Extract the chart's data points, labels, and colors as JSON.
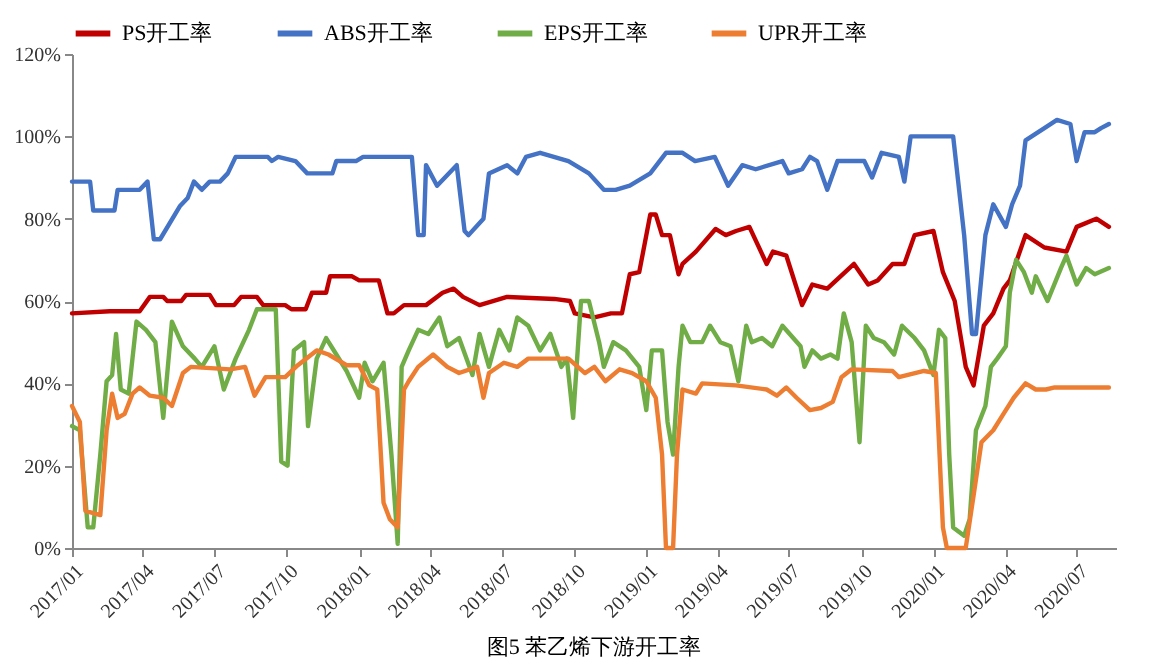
{
  "chart_data": {
    "type": "line",
    "title": "图5 苯乙烯下游开工率",
    "legend": "top",
    "line_style": "solid",
    "xlim": [
      "2017-01-01",
      "2020-08-20"
    ],
    "xticks": [
      {
        "value": "2017-01-01",
        "label": "2017/01"
      },
      {
        "value": "2017-04-01",
        "label": "2017/04"
      },
      {
        "value": "2017-07-01",
        "label": "2017/07"
      },
      {
        "value": "2017-10-01",
        "label": "2017/10"
      },
      {
        "value": "2018-01-01",
        "label": "2018/01"
      },
      {
        "value": "2018-04-01",
        "label": "2018/04"
      },
      {
        "value": "2018-07-01",
        "label": "2018/07"
      },
      {
        "value": "2018-10-01",
        "label": "2018/10"
      },
      {
        "value": "2019-01-01",
        "label": "2019/01"
      },
      {
        "value": "2019-04-01",
        "label": "2019/04"
      },
      {
        "value": "2019-07-01",
        "label": "2019/07"
      },
      {
        "value": "2019-10-01",
        "label": "2019/10"
      },
      {
        "value": "2020-01-01",
        "label": "2020/01"
      },
      {
        "value": "2020-04-01",
        "label": "2020/04"
      },
      {
        "value": "2020-07-01",
        "label": "2020/07"
      }
    ],
    "ylim": [
      0,
      120
    ],
    "yticks": [
      {
        "value": 0,
        "label": "0%"
      },
      {
        "value": 20,
        "label": "20%"
      },
      {
        "value": 40,
        "label": "40%"
      },
      {
        "value": 60,
        "label": "60%"
      },
      {
        "value": 80,
        "label": "80%"
      },
      {
        "value": 100,
        "label": "100%"
      },
      {
        "value": 120,
        "label": "120%"
      }
    ],
    "series": [
      {
        "name": "PS开工率",
        "color": "#c00000",
        "x": [
          "2017-01-01",
          "2017-02-18",
          "2017-03-28",
          "2017-04-10",
          "2017-04-27",
          "2017-05-02",
          "2017-05-20",
          "2017-05-26",
          "2017-06-25",
          "2017-07-03",
          "2017-07-26",
          "2017-08-04",
          "2017-08-24",
          "2017-09-01",
          "2017-09-29",
          "2017-10-07",
          "2017-10-25",
          "2017-11-02",
          "2017-11-20",
          "2017-11-25",
          "2017-12-23",
          "2018-01-01",
          "2018-01-26",
          "2018-02-06",
          "2018-02-14",
          "2018-02-27",
          "2018-03-27",
          "2018-04-17",
          "2018-05-01",
          "2018-05-13",
          "2018-06-03",
          "2018-07-08",
          "2018-09-06",
          "2018-09-26",
          "2018-10-02",
          "2018-10-27",
          "2018-11-17",
          "2018-12-01",
          "2018-12-11",
          "2018-12-23",
          "2019-01-06",
          "2019-01-13",
          "2019-01-21",
          "2019-01-31",
          "2019-02-11",
          "2019-02-16",
          "2019-03-05",
          "2019-03-30",
          "2019-04-12",
          "2019-04-25",
          "2019-05-12",
          "2019-06-03",
          "2019-06-11",
          "2019-06-28",
          "2019-07-18",
          "2019-07-31",
          "2019-08-19",
          "2019-09-22",
          "2019-10-10",
          "2019-10-22",
          "2019-11-10",
          "2019-11-25",
          "2019-12-08",
          "2020-01-01",
          "2020-01-13",
          "2020-01-28",
          "2020-02-11",
          "2020-02-21",
          "2020-03-05",
          "2020-03-17",
          "2020-03-30",
          "2020-04-07",
          "2020-04-27",
          "2020-05-21",
          "2020-06-18",
          "2020-07-01",
          "2020-07-26",
          "2020-08-11"
        ],
        "values": [
          57,
          57.5,
          57.5,
          61,
          61,
          60,
          60,
          61.5,
          61.5,
          59,
          59,
          61,
          61,
          59,
          59,
          58,
          58,
          62,
          62,
          66,
          66,
          65,
          65,
          57,
          57,
          59,
          59,
          62,
          63,
          61,
          59,
          61,
          60.5,
          60,
          57,
          56,
          57,
          57,
          66.5,
          67,
          81,
          81,
          76,
          76,
          66.5,
          69,
          72,
          77.5,
          76,
          77,
          78,
          69,
          72,
          71,
          59,
          64,
          63,
          69,
          64,
          65,
          69,
          69,
          76,
          77,
          67,
          60,
          44,
          39.5,
          54,
          57,
          63,
          65,
          76,
          73,
          72,
          78,
          80,
          78
        ]
      },
      {
        "name": "ABS开工率",
        "color": "#4472c4",
        "x": [
          "2017-01-01",
          "2017-01-24",
          "2017-01-28",
          "2017-02-24",
          "2017-02-28",
          "2017-03-28",
          "2017-04-07",
          "2017-04-15",
          "2017-04-23",
          "2017-05-18",
          "2017-05-28",
          "2017-06-05",
          "2017-06-15",
          "2017-06-25",
          "2017-07-08",
          "2017-07-18",
          "2017-07-28",
          "2017-09-07",
          "2017-09-12",
          "2017-09-20",
          "2017-10-12",
          "2017-10-27",
          "2017-11-28",
          "2017-12-03",
          "2017-12-28",
          "2018-01-06",
          "2018-03-09",
          "2018-03-17",
          "2018-03-24",
          "2018-03-27",
          "2018-04-10",
          "2018-05-05",
          "2018-05-15",
          "2018-05-20",
          "2018-06-08",
          "2018-06-15",
          "2018-07-08",
          "2018-07-21",
          "2018-08-01",
          "2018-08-19",
          "2018-09-24",
          "2018-10-20",
          "2018-11-08",
          "2018-11-23",
          "2018-12-11",
          "2019-01-06",
          "2019-01-26",
          "2019-02-16",
          "2019-03-04",
          "2019-03-29",
          "2019-04-15",
          "2019-05-03",
          "2019-05-20",
          "2019-06-23",
          "2019-07-01",
          "2019-07-18",
          "2019-07-28",
          "2019-08-06",
          "2019-08-19",
          "2019-09-01",
          "2019-10-05",
          "2019-10-15",
          "2019-10-27",
          "2019-11-18",
          "2019-11-25",
          "2019-12-03",
          "2020-01-26",
          "2020-02-09",
          "2020-02-19",
          "2020-02-24",
          "2020-03-07",
          "2020-03-17",
          "2020-04-02",
          "2020-04-10",
          "2020-04-20",
          "2020-04-27",
          "2020-05-21",
          "2020-06-06",
          "2020-06-23",
          "2020-07-01",
          "2020-07-11",
          "2020-07-24",
          "2020-08-01",
          "2020-08-11"
        ],
        "values": [
          89,
          89,
          82,
          82,
          87,
          87,
          89,
          75,
          75,
          83,
          85,
          89,
          87,
          89,
          89,
          91,
          95,
          95,
          94,
          95,
          94,
          91,
          91,
          94,
          94,
          95,
          95,
          76,
          76,
          93,
          88,
          93,
          77,
          76,
          80,
          91,
          93,
          91,
          95,
          96,
          94,
          91,
          87,
          87,
          88,
          91,
          96,
          96,
          94,
          95,
          88,
          93,
          92,
          94,
          91,
          92,
          95,
          94,
          87,
          94,
          94,
          90,
          96,
          95,
          89,
          100,
          100,
          76,
          52,
          52,
          76,
          83.5,
          78,
          83.5,
          88,
          99,
          102,
          104,
          103,
          94,
          101,
          101,
          102,
          103
        ]
      },
      {
        "name": "EPS开工率",
        "color": "#70ad47",
        "x": [
          "2017-01-01",
          "2017-01-11",
          "2017-01-21",
          "2017-01-28",
          "2017-02-06",
          "2017-02-14",
          "2017-02-21",
          "2017-02-26",
          "2017-03-04",
          "2017-03-14",
          "2017-03-24",
          "2017-04-05",
          "2017-04-17",
          "2017-04-27",
          "2017-05-08",
          "2017-05-22",
          "2017-06-06",
          "2017-06-15",
          "2017-07-01",
          "2017-07-13",
          "2017-07-28",
          "2017-08-14",
          "2017-08-24",
          "2017-09-17",
          "2017-09-24",
          "2017-10-02",
          "2017-10-10",
          "2017-10-23",
          "2017-10-28",
          "2017-11-08",
          "2017-11-20",
          "2017-12-03",
          "2017-12-16",
          "2018-01-01",
          "2018-01-08",
          "2018-01-18",
          "2018-02-01",
          "2018-02-11",
          "2018-02-19",
          "2018-02-24",
          "2018-03-05",
          "2018-03-17",
          "2018-03-30",
          "2018-04-13",
          "2018-04-23",
          "2018-05-08",
          "2018-05-25",
          "2018-06-03",
          "2018-06-15",
          "2018-06-28",
          "2018-07-11",
          "2018-07-21",
          "2018-08-04",
          "2018-08-19",
          "2018-09-01",
          "2018-09-15",
          "2018-09-22",
          "2018-09-30",
          "2018-10-10",
          "2018-10-20",
          "2018-11-02",
          "2018-11-08",
          "2018-11-20",
          "2018-12-06",
          "2018-12-23",
          "2019-01-01",
          "2019-01-08",
          "2019-01-21",
          "2019-01-28",
          "2019-02-04",
          "2019-02-11",
          "2019-02-16",
          "2019-02-26",
          "2019-03-13",
          "2019-03-23",
          "2019-04-05",
          "2019-04-18",
          "2019-04-28",
          "2019-05-08",
          "2019-05-15",
          "2019-05-28",
          "2019-06-10",
          "2019-06-23",
          "2019-07-16",
          "2019-07-21",
          "2019-07-31",
          "2019-08-11",
          "2019-08-23",
          "2019-09-01",
          "2019-09-09",
          "2019-09-19",
          "2019-09-29",
          "2019-10-07",
          "2019-10-17",
          "2019-10-30",
          "2019-11-12",
          "2019-11-22",
          "2019-12-08",
          "2019-12-20",
          "2020-01-01",
          "2020-01-08",
          "2020-01-16",
          "2020-01-21",
          "2020-01-26",
          "2020-02-09",
          "2020-02-16",
          "2020-02-24",
          "2020-03-07",
          "2020-03-14",
          "2020-03-22",
          "2020-04-02",
          "2020-04-07",
          "2020-04-15",
          "2020-04-25",
          "2020-05-05",
          "2020-05-10",
          "2020-05-25",
          "2020-06-11",
          "2020-06-18",
          "2020-07-01",
          "2020-07-13",
          "2020-07-24",
          "2020-08-11"
        ],
        "values": [
          29.6,
          28.6,
          5,
          5,
          22.7,
          40.5,
          42,
          52,
          38.5,
          37.5,
          55,
          53,
          50,
          31.6,
          55,
          49,
          46,
          44,
          49,
          38.5,
          46,
          53,
          58,
          58,
          21,
          20,
          48,
          50,
          29.6,
          46,
          51,
          47,
          43,
          36.5,
          45,
          40.5,
          45,
          22.7,
          1,
          44,
          48,
          53,
          52,
          56,
          49,
          51,
          42,
          52,
          44,
          53,
          48,
          56,
          54,
          48,
          52,
          44,
          46,
          31.6,
          60,
          60,
          50,
          44,
          50,
          48,
          44,
          33.5,
          48,
          48,
          30.6,
          22.7,
          44,
          54,
          50,
          50,
          54,
          50,
          49,
          40.5,
          54,
          50,
          51,
          49,
          54,
          49,
          44,
          48,
          46,
          47,
          46,
          57,
          50,
          25.7,
          54,
          51,
          50,
          47,
          54,
          51,
          48,
          42,
          53,
          51,
          22.7,
          5,
          3,
          7,
          28.6,
          34.5,
          44,
          46,
          49,
          62,
          70,
          67,
          62,
          66,
          60,
          68,
          71,
          64,
          68,
          66.5,
          68
        ]
      },
      {
        "name": "UPR开工率",
        "color": "#ed7d31",
        "x": [
          "2017-01-01",
          "2017-01-11",
          "2017-01-18",
          "2017-02-06",
          "2017-02-14",
          "2017-02-21",
          "2017-02-28",
          "2017-03-09",
          "2017-03-19",
          "2017-03-28",
          "2017-04-10",
          "2017-04-27",
          "2017-05-08",
          "2017-05-22",
          "2017-06-01",
          "2017-07-21",
          "2017-08-09",
          "2017-08-21",
          "2017-09-04",
          "2017-09-29",
          "2017-10-15",
          "2017-11-08",
          "2017-11-23",
          "2017-12-16",
          "2018-01-01",
          "2018-01-14",
          "2018-01-24",
          "2018-02-01",
          "2018-02-09",
          "2018-02-19",
          "2018-02-27",
          "2018-03-05",
          "2018-03-17",
          "2018-04-05",
          "2018-04-23",
          "2018-05-08",
          "2018-05-31",
          "2018-06-08",
          "2018-06-15",
          "2018-07-04",
          "2018-07-21",
          "2018-08-04",
          "2018-09-24",
          "2018-10-15",
          "2018-10-27",
          "2018-11-10",
          "2018-11-28",
          "2018-12-14",
          "2019-01-01",
          "2019-01-13",
          "2019-01-21",
          "2019-01-26",
          "2019-02-04",
          "2019-02-09",
          "2019-02-16",
          "2019-03-05",
          "2019-03-13",
          "2019-04-25",
          "2019-06-03",
          "2019-06-16",
          "2019-06-28",
          "2019-07-11",
          "2019-07-28",
          "2019-08-11",
          "2019-08-26",
          "2019-09-06",
          "2019-09-19",
          "2019-11-10",
          "2019-11-18",
          "2019-12-20",
          "2020-01-04",
          "2020-01-13",
          "2020-01-18",
          "2020-02-11",
          "2020-02-21",
          "2020-03-02",
          "2020-03-17",
          "2020-03-30",
          "2020-04-12",
          "2020-04-27",
          "2020-05-10",
          "2020-05-23",
          "2020-06-03",
          "2020-08-11"
        ],
        "values": [
          34.5,
          30.6,
          9,
          8,
          28.6,
          37.5,
          31.6,
          32.6,
          37.5,
          39,
          37,
          36.5,
          34.5,
          42.5,
          44,
          43.4,
          44,
          37,
          41.5,
          41.5,
          44.4,
          48,
          47,
          44.4,
          44.4,
          39.5,
          38.5,
          11,
          7,
          5,
          38.5,
          40.5,
          44,
          47,
          44,
          42.5,
          44,
          36.5,
          42.5,
          45,
          44,
          46,
          46,
          42.5,
          44,
          40.5,
          43.4,
          42.5,
          40.5,
          36.5,
          22.7,
          0,
          0,
          22.7,
          38.5,
          37.5,
          40,
          39.5,
          38.5,
          37,
          39,
          36.5,
          33.5,
          34,
          35.5,
          41.5,
          43.4,
          43,
          41.5,
          43,
          42.5,
          5,
          0,
          0,
          12.8,
          25.7,
          28.6,
          32.6,
          36.5,
          40,
          38.5,
          38.5,
          39,
          39
        ]
      }
    ]
  }
}
